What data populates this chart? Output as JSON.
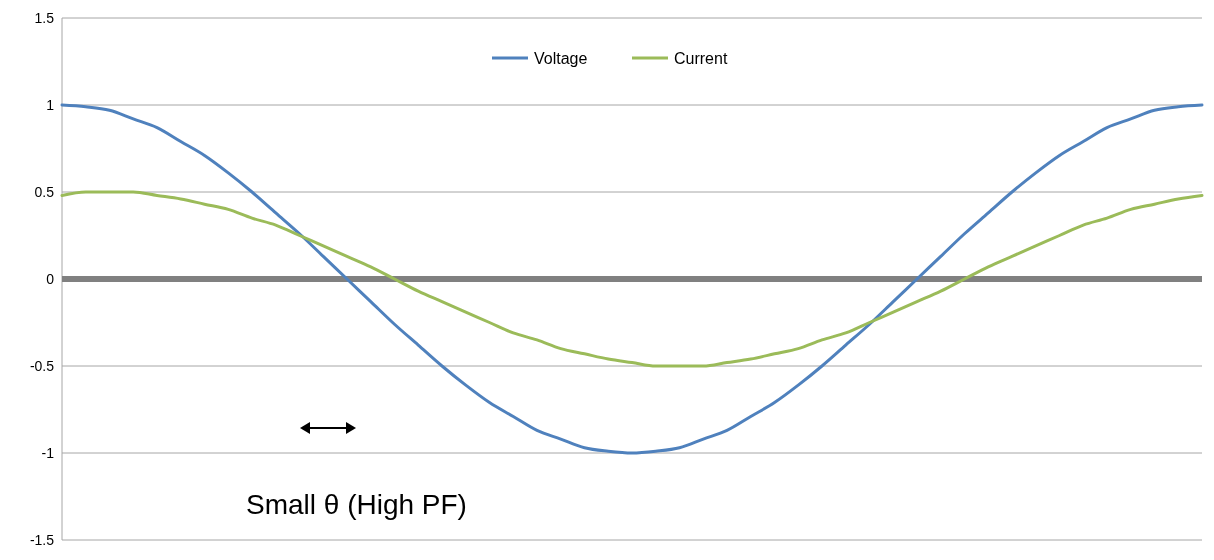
{
  "chart_data": {
    "type": "line",
    "categories": [
      null,
      null,
      null,
      null,
      null,
      null,
      null,
      null,
      null,
      null,
      null,
      null,
      null,
      null,
      null,
      null,
      null,
      null,
      null,
      null,
      null,
      null,
      null,
      null,
      null,
      null,
      null,
      null,
      null,
      null,
      null,
      null,
      null,
      null,
      null,
      null,
      null,
      null,
      null,
      null,
      null,
      null,
      null,
      null,
      null,
      null,
      null,
      null,
      null
    ],
    "series": [
      {
        "name": "Voltage",
        "color": "#4f81bd",
        "values": [
          1,
          0.99,
          0.97,
          0.92,
          0.87,
          0.79,
          0.71,
          0.61,
          0.5,
          0.38,
          0.26,
          0.13,
          0,
          -0.13,
          -0.26,
          -0.38,
          -0.5,
          -0.61,
          -0.71,
          -0.79,
          -0.87,
          -0.92,
          -0.97,
          -0.99,
          -1,
          -0.99,
          -0.97,
          -0.92,
          -0.87,
          -0.79,
          -0.71,
          -0.61,
          -0.5,
          -0.38,
          -0.26,
          -0.13,
          0,
          0.13,
          0.26,
          0.38,
          0.5,
          0.61,
          0.71,
          0.79,
          0.87,
          0.92,
          0.97,
          0.99,
          1
        ]
      },
      {
        "name": "Current",
        "color": "#9bbb59",
        "values": [
          0.48,
          0.5,
          0.5,
          0.5,
          0.48,
          0.46,
          0.43,
          0.4,
          0.35,
          0.31,
          0.25,
          0.19,
          0.13,
          0.07,
          0,
          -0.07,
          -0.13,
          -0.19,
          -0.25,
          -0.31,
          -0.35,
          -0.4,
          -0.43,
          -0.46,
          -0.48,
          -0.5,
          -0.5,
          -0.5,
          -0.48,
          -0.46,
          -0.43,
          -0.4,
          -0.35,
          -0.31,
          -0.25,
          -0.19,
          -0.13,
          -0.07,
          0,
          0.07,
          0.13,
          0.19,
          0.25,
          0.31,
          0.35,
          0.4,
          0.43,
          0.46,
          0.48
        ]
      }
    ],
    "ylim": [
      -1.5,
      1.5
    ],
    "yticks": [
      -1.5,
      -1,
      -0.5,
      0,
      0.5,
      1,
      1.5
    ],
    "grid": "y",
    "legend": "top",
    "marker": "none",
    "line_style": "solid",
    "tick_labels": "y",
    "ref_lines": [
      {
        "axis": "y",
        "value": 0,
        "color": "#808080"
      }
    ],
    "annotations": [
      "Small θ (High PF)"
    ]
  }
}
